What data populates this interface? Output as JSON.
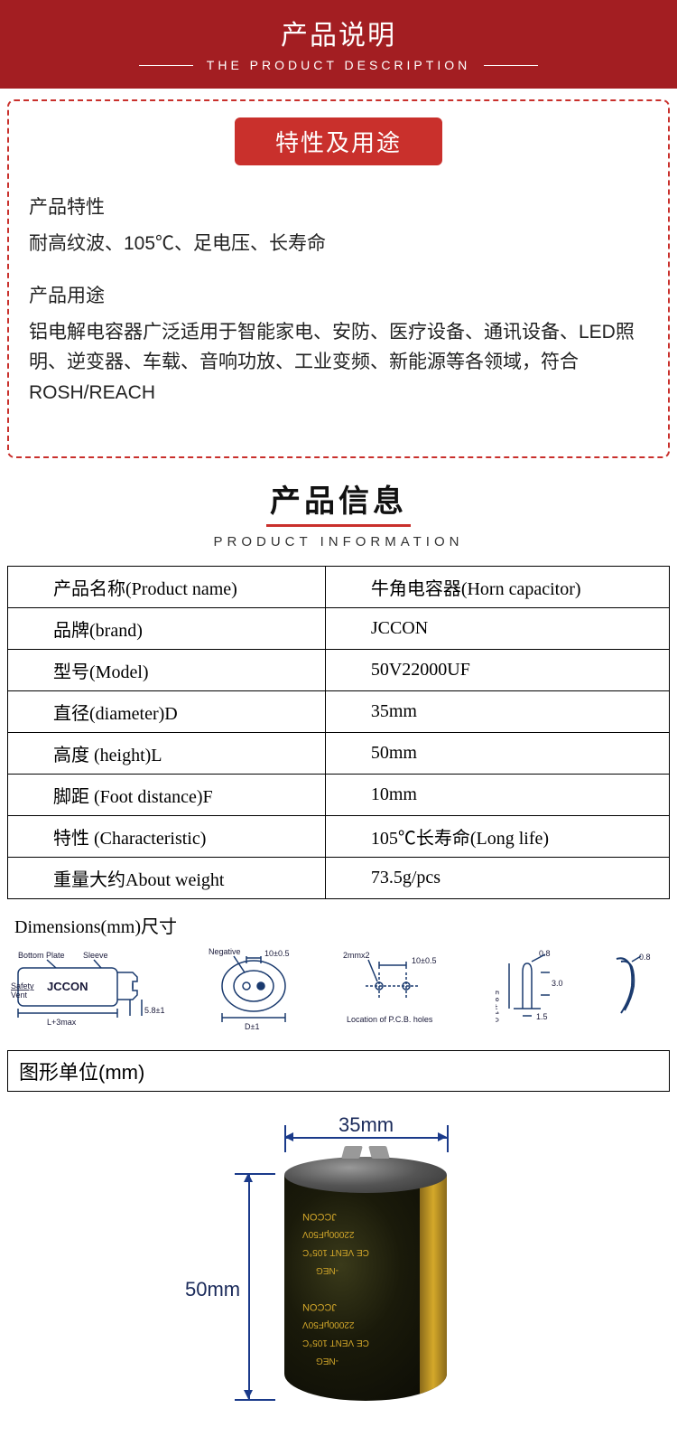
{
  "header": {
    "title_cn": "产品说明",
    "title_en": "THE PRODUCT DESCRIPTION"
  },
  "features_box": {
    "badge": "特性及用途",
    "feature_title": "产品特性",
    "feature_text": "耐高纹波、105℃、足电压、长寿命",
    "usage_title": "产品用途",
    "usage_text": "铝电解电容器广泛适用于智能家电、安防、医疗设备、通讯设备、LED照明、逆变器、车载、音响功放、工业变频、新能源等各领域，符合ROSH/REACH"
  },
  "info_section": {
    "title_cn": "产品信息",
    "title_en": "PRODUCT INFORMATION"
  },
  "spec_table": {
    "rows": [
      {
        "label": "产品名称(Product name)",
        "value": "牛角电容器(Horn capacitor)"
      },
      {
        "label": "品牌(brand)",
        "value": "JCCON"
      },
      {
        "label": "型号(Model)",
        "value": "50V22000UF"
      },
      {
        "label": "直径(diameter)D",
        "value": "35mm"
      },
      {
        "label": "高度 (height)L",
        "value": "50mm"
      },
      {
        "label": "脚距 (Foot distance)F",
        "value": "10mm"
      },
      {
        "label": "特性 (Characteristic)",
        "value": "105℃长寿命(Long life)"
      },
      {
        "label": "重量大约About weight",
        "value": "73.5g/pcs"
      }
    ]
  },
  "dimensions": {
    "title": "Dimensions(mm)尺寸",
    "labels": {
      "bottom_plate": "Bottom Plate",
      "sleeve": "Sleeve",
      "safety_vent": "Safety\nVent",
      "jccon": "JCCON",
      "l3max": "L+3max",
      "five_eight": "5.8±1",
      "negative": "Negative",
      "d1": "D±1",
      "ten_half": "10±0.5",
      "two_mm": "2mmx2",
      "ten_half2": "10±0.5",
      "pcb_holes": "Location of P.C.B. holes",
      "point_eight": "0.8",
      "five_eight_one": "5.8±1.0",
      "three_zero": "3.0",
      "one_five": "1.5",
      "point_eight2": "0.8"
    }
  },
  "unit_title": "图形单位(mm)",
  "product_image": {
    "width_label": "35mm",
    "height_label": "50mm",
    "brand": "JCCON",
    "spec": "22000μF50V",
    "ce": "CE VENT 105°C",
    "neg": "-NEG"
  },
  "colors": {
    "banner_red": "#a31e22",
    "badge_red": "#c9302c",
    "diagram_blue": "#1a3a6e",
    "dim_blue": "#1a3a8a",
    "gold": "#d4a82a"
  }
}
